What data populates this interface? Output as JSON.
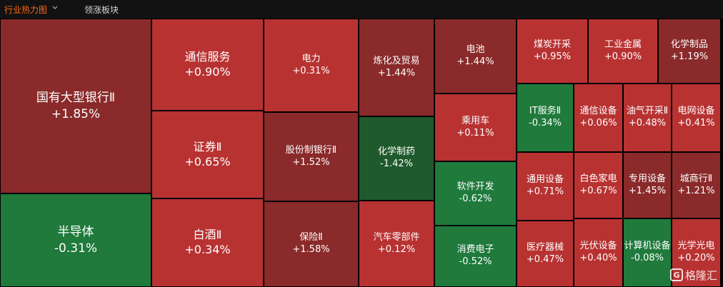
{
  "tabs": [
    {
      "label": "行业热力图",
      "active": true
    },
    {
      "label": "领涨板块",
      "active": false
    }
  ],
  "colors": {
    "active_tab": "#ff6a1a",
    "background": "#000000"
  },
  "tiles": [
    {
      "name": "国有大型银行Ⅱ",
      "change": "+1.85%",
      "color": "#8a2a2a"
    },
    {
      "name": "半导体",
      "change": "-0.31%",
      "color": "#1f7a3c"
    },
    {
      "name": "通信服务",
      "change": "+0.90%",
      "color": "#b83232"
    },
    {
      "name": "证券Ⅱ",
      "change": "+0.65%",
      "color": "#b83232"
    },
    {
      "name": "白酒Ⅱ",
      "change": "+0.34%",
      "color": "#b83232"
    },
    {
      "name": "电力",
      "change": "+0.31%",
      "color": "#b83232"
    },
    {
      "name": "股份制银行Ⅱ",
      "change": "+1.52%",
      "color": "#8a2a2a"
    },
    {
      "name": "保险Ⅱ",
      "change": "+1.58%",
      "color": "#8a2a2a"
    },
    {
      "name": "炼化及贸易",
      "change": "+1.44%",
      "color": "#8a2a2a"
    },
    {
      "name": "化学制药",
      "change": "-1.42%",
      "color": "#1f5a2c"
    },
    {
      "name": "汽车零部件",
      "change": "+0.12%",
      "color": "#b83232"
    },
    {
      "name": "电池",
      "change": "+1.44%",
      "color": "#8a2a2a"
    },
    {
      "name": "乘用车",
      "change": "+0.11%",
      "color": "#b83232"
    },
    {
      "name": "软件开发",
      "change": "-0.62%",
      "color": "#1f7a3c"
    },
    {
      "name": "消费电子",
      "change": "-0.52%",
      "color": "#1f7a3c"
    },
    {
      "name": "煤炭开采",
      "change": "+0.95%",
      "color": "#b83232"
    },
    {
      "name": "工业金属",
      "change": "+0.90%",
      "color": "#b83232"
    },
    {
      "name": "化学制品",
      "change": "+1.19%",
      "color": "#8a2a2a"
    },
    {
      "name": "IT服务Ⅱ",
      "change": "-0.34%",
      "color": "#1f7a3c"
    },
    {
      "name": "通信设备",
      "change": "+0.06%",
      "color": "#b83232"
    },
    {
      "name": "油气开采Ⅱ",
      "change": "+0.48%",
      "color": "#b83232"
    },
    {
      "name": "电网设备",
      "change": "+0.41%",
      "color": "#b83232"
    },
    {
      "name": "通用设备",
      "change": "+0.71%",
      "color": "#b83232"
    },
    {
      "name": "白色家电",
      "change": "+0.67%",
      "color": "#b83232"
    },
    {
      "name": "专用设备",
      "change": "+1.45%",
      "color": "#8a2a2a"
    },
    {
      "name": "城商行Ⅱ",
      "change": "+1.21%",
      "color": "#8a2a2a"
    },
    {
      "name": "医疗器械",
      "change": "+0.47%",
      "color": "#b83232"
    },
    {
      "name": "光伏设备",
      "change": "+0.40%",
      "color": "#b83232"
    },
    {
      "name": "计算机设备",
      "change": "-0.08%",
      "color": "#1f7a3c"
    },
    {
      "name": "光学光电",
      "change": "+0.20%",
      "color": "#b83232"
    }
  ],
  "watermark": {
    "text": "格隆汇",
    "badge": "G"
  }
}
